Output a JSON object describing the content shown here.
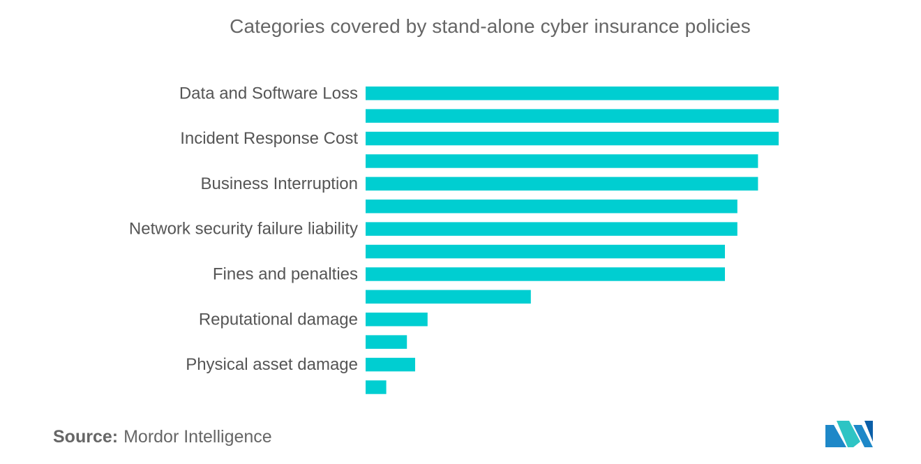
{
  "chart_data": {
    "type": "bar",
    "orientation": "horizontal",
    "title": "Categories covered by stand-alone cyber insurance policies",
    "categories": [
      "Data and Software Loss",
      "",
      "Incident Response Cost",
      "",
      "Business Interruption",
      "",
      "Network security failure liability",
      "",
      "Fines and penalties",
      "",
      "Reputational damage",
      "",
      "Physical asset damage",
      ""
    ],
    "values": [
      100,
      100,
      100,
      95,
      95,
      90,
      90,
      87,
      87,
      40,
      15,
      10,
      12,
      5
    ],
    "xlim": [
      0,
      100
    ],
    "grid": false,
    "legend": "none",
    "bar_color": "#00CED1"
  },
  "source": {
    "label": "Source:",
    "text": "Mordor Intelligence"
  },
  "logo": {
    "icon": "mordor-intelligence-logo",
    "colors": [
      "#1e88c8",
      "#2ec4c4",
      "#0b5fa8"
    ]
  }
}
